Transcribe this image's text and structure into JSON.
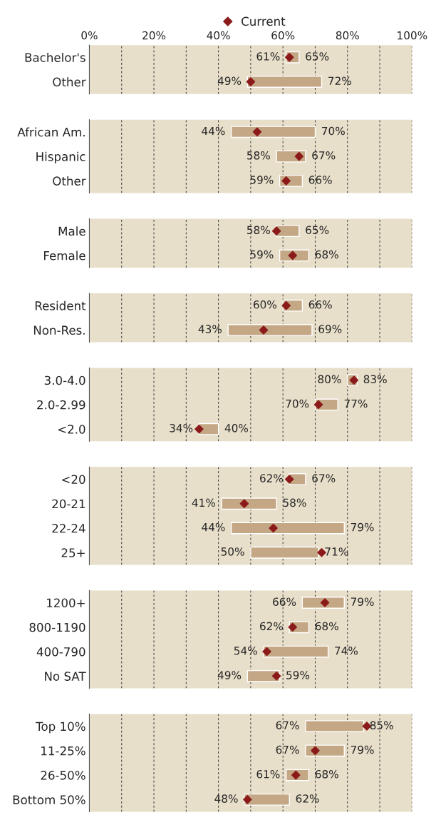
{
  "chart_data": [
    {
      "type": "bar",
      "orientation": "horizontal",
      "categories": [
        "Bachelor's",
        "Other"
      ],
      "xlim": [
        0,
        100
      ],
      "xticks": [
        {
          "value": 0,
          "label": "0%"
        },
        {
          "value": 10,
          "label": null
        },
        {
          "value": 20,
          "label": "20%"
        },
        {
          "value": 30,
          "label": null
        },
        {
          "value": 40,
          "label": "40%"
        },
        {
          "value": 50,
          "label": null
        },
        {
          "value": 60,
          "label": "60%"
        },
        {
          "value": 70,
          "label": null
        },
        {
          "value": 80,
          "label": "80%"
        },
        {
          "value": 90,
          "label": null
        },
        {
          "value": 100,
          "label": "100%"
        }
      ],
      "grid": "x",
      "legend": "top",
      "series": [
        {
          "color": "#c4a784",
          "base": [
            61,
            49
          ],
          "values": [
            4,
            23
          ]
        },
        {
          "type": "scatter",
          "name": "Current",
          "color": "#8b1a1a",
          "marker": "diamond",
          "values": [
            62,
            50
          ]
        }
      ],
      "annotations": [
        {
          "text": "61%",
          "x": 61,
          "y": "Bachelor's"
        },
        {
          "text": "65%",
          "x": 65,
          "y": "Bachelor's"
        },
        {
          "text": "49%",
          "x": 49,
          "y": "Other"
        },
        {
          "text": "72%",
          "x": 72,
          "y": "Other"
        }
      ]
    },
    {
      "type": "bar",
      "orientation": "horizontal",
      "categories": [
        "African Am.",
        "Hispanic",
        "Other"
      ],
      "xlim": [
        0,
        100
      ],
      "xticks": [
        0,
        10,
        20,
        30,
        40,
        50,
        60,
        70,
        80,
        90,
        100
      ],
      "tick_labels": "y",
      "grid": "x",
      "series": [
        {
          "color": "#c4a784",
          "base": [
            44,
            58,
            59
          ],
          "values": [
            26,
            9,
            7
          ]
        },
        {
          "type": "scatter",
          "color": "#8b1a1a",
          "marker": "diamond",
          "values": [
            52,
            65,
            61
          ]
        }
      ],
      "annotations": [
        {
          "text": "44%",
          "x": 44,
          "y": "African Am."
        },
        {
          "text": "70%",
          "x": 70,
          "y": "African Am."
        },
        {
          "text": "58%",
          "x": 58,
          "y": "Hispanic"
        },
        {
          "text": "67%",
          "x": 67,
          "y": "Hispanic"
        },
        {
          "text": "59%",
          "x": 59,
          "y": "Other"
        },
        {
          "text": "66%",
          "x": 66,
          "y": "Other"
        }
      ]
    },
    {
      "type": "bar",
      "orientation": "horizontal",
      "categories": [
        "Male",
        "Female"
      ],
      "xlim": [
        0,
        100
      ],
      "xticks": [
        0,
        10,
        20,
        30,
        40,
        50,
        60,
        70,
        80,
        90,
        100
      ],
      "tick_labels": "y",
      "grid": "x",
      "series": [
        {
          "color": "#c4a784",
          "base": [
            58,
            59
          ],
          "values": [
            7,
            9
          ]
        },
        {
          "type": "scatter",
          "color": "#8b1a1a",
          "marker": "diamond",
          "values": [
            58,
            63
          ]
        }
      ],
      "annotations": [
        {
          "text": "58%",
          "x": 58,
          "y": "Male"
        },
        {
          "text": "65%",
          "x": 65,
          "y": "Male"
        },
        {
          "text": "59%",
          "x": 59,
          "y": "Female"
        },
        {
          "text": "68%",
          "x": 68,
          "y": "Female"
        }
      ]
    },
    {
      "type": "bar",
      "orientation": "horizontal",
      "categories": [
        "Resident",
        "Non-Res."
      ],
      "xlim": [
        0,
        100
      ],
      "xticks": [
        0,
        10,
        20,
        30,
        40,
        50,
        60,
        70,
        80,
        90,
        100
      ],
      "tick_labels": "y",
      "grid": "x",
      "series": [
        {
          "color": "#c4a784",
          "base": [
            60,
            43
          ],
          "values": [
            6,
            26
          ]
        },
        {
          "type": "scatter",
          "color": "#8b1a1a",
          "marker": "diamond",
          "values": [
            61,
            54
          ]
        }
      ],
      "annotations": [
        {
          "text": "60%",
          "x": 60,
          "y": "Resident"
        },
        {
          "text": "66%",
          "x": 66,
          "y": "Resident"
        },
        {
          "text": "43%",
          "x": 43,
          "y": "Non-Res."
        },
        {
          "text": "69%",
          "x": 69,
          "y": "Non-Res."
        }
      ]
    },
    {
      "type": "bar",
      "orientation": "horizontal",
      "categories": [
        "3.0-4.0",
        "2.0-2.99",
        "<2.0"
      ],
      "xlim": [
        0,
        100
      ],
      "xticks": [
        0,
        10,
        20,
        30,
        40,
        50,
        60,
        70,
        80,
        90,
        100
      ],
      "tick_labels": "y",
      "grid": "x",
      "series": [
        {
          "color": "#c4a784",
          "base": [
            80,
            70,
            34
          ],
          "values": [
            3,
            7,
            6
          ]
        },
        {
          "type": "scatter",
          "color": "#8b1a1a",
          "marker": "diamond",
          "values": [
            82,
            71,
            34
          ]
        }
      ],
      "annotations": [
        {
          "text": "80%",
          "x": 80,
          "y": "3.0-4.0"
        },
        {
          "text": "83%",
          "x": 83,
          "y": "3.0-4.0"
        },
        {
          "text": "70%",
          "x": 70,
          "y": "2.0-2.99"
        },
        {
          "text": "77%",
          "x": 77,
          "y": "2.0-2.99"
        },
        {
          "text": "34%",
          "x": 34,
          "y": "<2.0"
        },
        {
          "text": "40%",
          "x": 40,
          "y": "<2.0"
        }
      ]
    },
    {
      "type": "bar",
      "orientation": "horizontal",
      "categories": [
        "<20",
        "20-21",
        "22-24",
        "25+"
      ],
      "xlim": [
        0,
        100
      ],
      "xticks": [
        0,
        10,
        20,
        30,
        40,
        50,
        60,
        70,
        80,
        90,
        100
      ],
      "tick_labels": "y",
      "grid": "x",
      "series": [
        {
          "color": "#c4a784",
          "base": [
            62,
            41,
            44,
            50
          ],
          "values": [
            5,
            17,
            35,
            21
          ]
        },
        {
          "type": "scatter",
          "color": "#8b1a1a",
          "marker": "diamond",
          "values": [
            62,
            48,
            57,
            72
          ]
        }
      ],
      "annotations": [
        {
          "text": "62%",
          "x": 62,
          "y": "<20"
        },
        {
          "text": "67%",
          "x": 67,
          "y": "<20"
        },
        {
          "text": "41%",
          "x": 41,
          "y": "20-21"
        },
        {
          "text": "58%",
          "x": 58,
          "y": "20-21"
        },
        {
          "text": "44%",
          "x": 44,
          "y": "22-24"
        },
        {
          "text": "79%",
          "x": 79,
          "y": "22-24"
        },
        {
          "text": "50%",
          "x": 50,
          "y": "25+"
        },
        {
          "text": "71%",
          "x": 71,
          "y": "25+"
        }
      ]
    },
    {
      "type": "bar",
      "orientation": "horizontal",
      "categories": [
        "1200+",
        "800-1190",
        "400-790",
        "No SAT"
      ],
      "xlim": [
        0,
        100
      ],
      "xticks": [
        0,
        10,
        20,
        30,
        40,
        50,
        60,
        70,
        80,
        90,
        100
      ],
      "tick_labels": "y",
      "grid": "x",
      "series": [
        {
          "color": "#c4a784",
          "base": [
            66,
            62,
            54,
            49
          ],
          "values": [
            13,
            6,
            20,
            10
          ]
        },
        {
          "type": "scatter",
          "color": "#8b1a1a",
          "marker": "diamond",
          "values": [
            73,
            63,
            55,
            58
          ]
        }
      ],
      "annotations": [
        {
          "text": "66%",
          "x": 66,
          "y": "1200+"
        },
        {
          "text": "79%",
          "x": 79,
          "y": "1200+"
        },
        {
          "text": "62%",
          "x": 62,
          "y": "800-1190"
        },
        {
          "text": "68%",
          "x": 68,
          "y": "800-1190"
        },
        {
          "text": "54%",
          "x": 54,
          "y": "400-790"
        },
        {
          "text": "74%",
          "x": 74,
          "y": "400-790"
        },
        {
          "text": "49%",
          "x": 49,
          "y": "No SAT"
        },
        {
          "text": "59%",
          "x": 59,
          "y": "No SAT"
        }
      ]
    },
    {
      "type": "bar",
      "orientation": "horizontal",
      "categories": [
        "Top 10%",
        "11-25%",
        "26-50%",
        "Bottom 50%"
      ],
      "xlim": [
        0,
        100
      ],
      "xticks": [
        0,
        10,
        20,
        30,
        40,
        50,
        60,
        70,
        80,
        90,
        100
      ],
      "tick_labels": "y",
      "grid": "x",
      "series": [
        {
          "color": "#c4a784",
          "base": [
            67,
            67,
            61,
            48
          ],
          "values": [
            18,
            12,
            7,
            14
          ]
        },
        {
          "type": "scatter",
          "color": "#8b1a1a",
          "marker": "diamond",
          "values": [
            86,
            70,
            64,
            49
          ]
        }
      ],
      "annotations": [
        {
          "text": "67%",
          "x": 67,
          "y": "Top 10%"
        },
        {
          "text": "85%",
          "x": 85,
          "y": "Top 10%"
        },
        {
          "text": "67%",
          "x": 67,
          "y": "11-25%"
        },
        {
          "text": "79%",
          "x": 79,
          "y": "11-25%"
        },
        {
          "text": "61%",
          "x": 61,
          "y": "26-50%"
        },
        {
          "text": "68%",
          "x": 68,
          "y": "26-50%"
        },
        {
          "text": "48%",
          "x": 48,
          "y": "Bottom 50%"
        },
        {
          "text": "62%",
          "x": 62,
          "y": "Bottom 50%"
        }
      ]
    }
  ]
}
